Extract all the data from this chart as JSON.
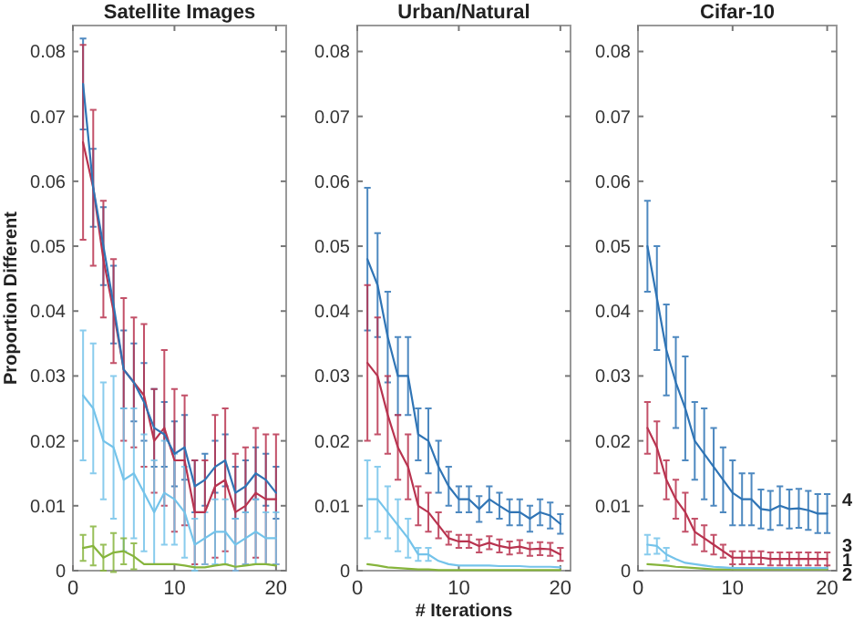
{
  "chart_data": [
    {
      "type": "line",
      "title": "Satellite Images",
      "ylabel": "Proportion Different",
      "xlim": [
        0,
        21
      ],
      "xticks": [
        0,
        10,
        20
      ],
      "ylim": [
        0,
        0.084
      ],
      "yticks": [
        0,
        0.01,
        0.02,
        0.03,
        0.04,
        0.05,
        0.06,
        0.07,
        0.08
      ],
      "x": [
        1,
        2,
        3,
        4,
        5,
        6,
        7,
        8,
        9,
        10,
        11,
        12,
        13,
        14,
        15,
        16,
        17,
        18,
        19,
        20
      ],
      "line_style": "solid",
      "series": [
        {
          "color": "#2f74b5",
          "values": [
            0.075,
            0.059,
            0.05,
            0.041,
            0.031,
            0.029,
            0.026,
            0.022,
            0.021,
            0.018,
            0.019,
            0.013,
            0.014,
            0.016,
            0.017,
            0.012,
            0.013,
            0.015,
            0.014,
            0.012
          ],
          "errors": [
            0.007,
            0.006,
            0.006,
            0.006,
            0.006,
            0.006,
            0.006,
            0.006,
            0.005,
            0.005,
            0.005,
            0.004,
            0.004,
            0.004,
            0.004,
            0.004,
            0.004,
            0.004,
            0.004,
            0.004
          ]
        },
        {
          "color": "#b8334f",
          "values": [
            0.066,
            0.059,
            0.048,
            0.04,
            0.031,
            0.029,
            0.027,
            0.02,
            0.022,
            0.017,
            0.017,
            0.009,
            0.009,
            0.013,
            0.014,
            0.009,
            0.01,
            0.012,
            0.011,
            0.011
          ],
          "errors": [
            0.015,
            0.012,
            0.009,
            0.008,
            0.011,
            0.01,
            0.011,
            0.008,
            0.012,
            0.011,
            0.01,
            0.008,
            0.008,
            0.011,
            0.011,
            0.009,
            0.009,
            0.01,
            0.01,
            0.01
          ]
        },
        {
          "color": "#74c3ea",
          "values": [
            0.027,
            0.025,
            0.02,
            0.019,
            0.014,
            0.015,
            0.012,
            0.009,
            0.012,
            0.011,
            0.009,
            0.004,
            0.005,
            0.006,
            0.006,
            0.004,
            0.005,
            0.006,
            0.005,
            0.005
          ],
          "errors": [
            0.01,
            0.01,
            0.009,
            0.011,
            0.011,
            0.01,
            0.009,
            0.008,
            0.008,
            0.007,
            0.007,
            0.004,
            0.004,
            0.005,
            0.005,
            0.004,
            0.004,
            0.005,
            0.004,
            0.004
          ]
        },
        {
          "color": "#86b43c",
          "values": [
            0.0035,
            0.0038,
            0.002,
            0.0028,
            0.003,
            0.0022,
            0.001,
            0.001,
            0.001,
            0.001,
            0.0008,
            0.0005,
            0.0005,
            0.0008,
            0.001,
            0.0006,
            0.0008,
            0.001,
            0.001,
            0.0008
          ],
          "errors": [
            0.002,
            0.003,
            0.002,
            0.003,
            0.002,
            0.002,
            null,
            null,
            null,
            null,
            null,
            null,
            null,
            null,
            null,
            null,
            null,
            null,
            null,
            null
          ]
        }
      ]
    },
    {
      "type": "line",
      "title": "Urban/Natural",
      "xlabel": "# Iterations",
      "xlim": [
        0,
        21
      ],
      "xticks": [
        0,
        10,
        20
      ],
      "ylim": [
        0,
        0.084
      ],
      "yticks": [
        0,
        0.01,
        0.02,
        0.03,
        0.04,
        0.05,
        0.06,
        0.07,
        0.08
      ],
      "x": [
        1,
        2,
        3,
        4,
        5,
        6,
        7,
        8,
        9,
        10,
        11,
        12,
        13,
        14,
        15,
        16,
        17,
        18,
        19,
        20
      ],
      "line_style": "solid",
      "series": [
        {
          "color": "#2f74b5",
          "values": [
            0.048,
            0.044,
            0.036,
            0.03,
            0.03,
            0.021,
            0.02,
            0.016,
            0.013,
            0.011,
            0.011,
            0.0095,
            0.011,
            0.01,
            0.009,
            0.009,
            0.008,
            0.009,
            0.0085,
            0.0072
          ],
          "errors": [
            0.011,
            0.008,
            0.007,
            0.006,
            0.006,
            0.004,
            0.005,
            0.004,
            0.003,
            0.002,
            0.002,
            0.002,
            0.002,
            0.002,
            0.002,
            0.002,
            0.002,
            0.002,
            0.002,
            0.0015
          ]
        },
        {
          "color": "#b8334f",
          "values": [
            0.032,
            0.03,
            0.024,
            0.019,
            0.016,
            0.01,
            0.009,
            0.007,
            0.005,
            0.0045,
            0.0045,
            0.0038,
            0.0043,
            0.0038,
            0.0035,
            0.0037,
            0.0033,
            0.0034,
            0.0033,
            0.0025
          ],
          "errors": [
            0.012,
            0.009,
            0.006,
            0.005,
            0.005,
            0.003,
            0.003,
            0.002,
            0.001,
            0.001,
            0.001,
            0.001,
            0.001,
            0.001,
            0.001,
            0.001,
            0.001,
            0.001,
            0.001,
            0.001
          ]
        },
        {
          "color": "#74c3ea",
          "values": [
            0.011,
            0.011,
            0.009,
            0.007,
            0.005,
            0.0025,
            0.0025,
            0.0015,
            0.001,
            0.0008,
            0.0008,
            0.0008,
            0.0008,
            0.0007,
            0.0007,
            0.0007,
            0.0006,
            0.0006,
            0.0006,
            0.0005
          ],
          "errors": [
            0.006,
            0.005,
            0.004,
            0.004,
            0.003,
            0.001,
            0.001,
            null,
            null,
            null,
            null,
            null,
            null,
            null,
            null,
            null,
            null,
            null,
            null,
            null
          ]
        },
        {
          "color": "#86b43c",
          "values": [
            0.001,
            0.0008,
            0.0005,
            0.0004,
            0.0003,
            0.0002,
            0.0002,
            0.0001,
            0.0001,
            0.0001,
            0.0001,
            0.0001,
            0.0001,
            0.0001,
            0.0001,
            0.0001,
            0.0001,
            0.0001,
            0.0001,
            0.0001
          ],
          "errors": [
            null,
            null,
            null,
            null,
            null,
            null,
            null,
            null,
            null,
            null,
            null,
            null,
            null,
            null,
            null,
            null,
            null,
            null,
            null,
            null
          ]
        }
      ]
    },
    {
      "type": "line",
      "title": "Cifar-10",
      "xlim": [
        0,
        21
      ],
      "xticks": [
        0,
        10,
        20
      ],
      "ylim": [
        0,
        0.084
      ],
      "yticks": [
        0,
        0.01,
        0.02,
        0.03,
        0.04,
        0.05,
        0.06,
        0.07,
        0.08
      ],
      "x": [
        1,
        2,
        3,
        4,
        5,
        6,
        7,
        8,
        9,
        10,
        11,
        12,
        13,
        14,
        15,
        16,
        17,
        18,
        19,
        20
      ],
      "legend": "right",
      "line_style": "solid",
      "series": [
        {
          "name": "4",
          "color": "#2f74b5",
          "values": [
            0.05,
            0.042,
            0.034,
            0.029,
            0.025,
            0.02,
            0.018,
            0.016,
            0.014,
            0.012,
            0.011,
            0.011,
            0.0095,
            0.0093,
            0.01,
            0.0095,
            0.0096,
            0.0093,
            0.0088,
            0.0088
          ],
          "errors": [
            0.007,
            0.008,
            0.007,
            0.007,
            0.008,
            0.006,
            0.007,
            0.006,
            0.005,
            0.005,
            0.004,
            0.004,
            0.003,
            0.003,
            0.003,
            0.003,
            0.003,
            0.003,
            0.003,
            0.003
          ]
        },
        {
          "name": "3",
          "color": "#b8334f",
          "values": [
            0.022,
            0.019,
            0.014,
            0.011,
            0.009,
            0.006,
            0.005,
            0.004,
            0.003,
            0.002,
            0.002,
            0.002,
            0.002,
            0.0018,
            0.0018,
            0.0018,
            0.0018,
            0.0018,
            0.0018,
            0.0018
          ],
          "errors": [
            0.004,
            0.004,
            0.003,
            0.003,
            0.003,
            0.002,
            0.002,
            0.0015,
            0.001,
            0.001,
            0.001,
            0.001,
            0.001,
            0.001,
            0.001,
            0.001,
            0.001,
            0.001,
            0.001,
            0.001
          ]
        },
        {
          "name": "1",
          "color": "#74c3ea",
          "values": [
            0.004,
            0.0038,
            0.0025,
            0.0018,
            0.0012,
            0.001,
            0.0008,
            0.0006,
            0.0005,
            0.0004,
            0.0004,
            0.0004,
            0.0004,
            0.0004,
            0.0004,
            0.0004,
            0.0004,
            0.0004,
            0.0004,
            0.0004
          ],
          "errors": [
            0.0015,
            0.0012,
            0.001,
            null,
            null,
            null,
            null,
            null,
            null,
            null,
            null,
            null,
            null,
            null,
            null,
            null,
            null,
            null,
            null,
            null
          ]
        },
        {
          "name": "2",
          "color": "#86b43c",
          "values": [
            0.001,
            0.0009,
            0.0008,
            0.0006,
            0.0005,
            0.0004,
            0.0003,
            0.0002,
            0.0002,
            0.0002,
            0.0002,
            0.0002,
            0.0002,
            0.0002,
            0.0002,
            0.0002,
            0.0002,
            0.0002,
            0.0002,
            0.0002
          ],
          "errors": [
            null,
            null,
            null,
            null,
            null,
            null,
            null,
            null,
            null,
            null,
            null,
            null,
            null,
            null,
            null,
            null,
            null,
            null,
            null,
            null
          ]
        }
      ]
    }
  ]
}
